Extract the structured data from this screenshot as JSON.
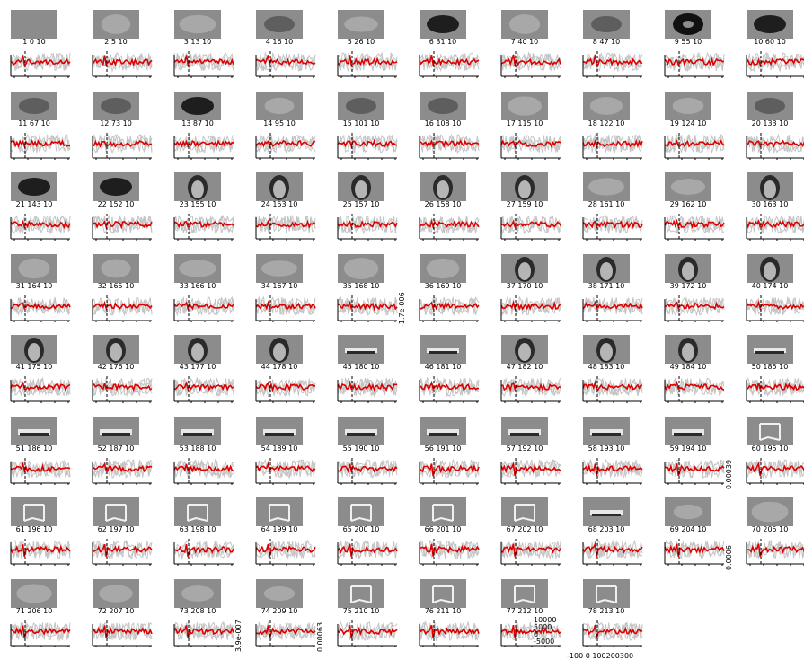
{
  "chart_data": {
    "type": "line",
    "title": "",
    "xlabel": "",
    "ylabel": "",
    "colors": {
      "mean": "#dd0000",
      "trials": "#c4c4c4",
      "axis": "#000000",
      "thumb_bg": "#8c8c8c"
    },
    "panels": [
      {
        "label": "1 0 10",
        "thumb": "blank"
      },
      {
        "label": "2 5 10",
        "thumb": "blob-light"
      },
      {
        "label": "3 13 10",
        "thumb": "blob-light"
      },
      {
        "label": "4 16 10",
        "thumb": "blob-mid"
      },
      {
        "label": "5 26 10",
        "thumb": "blob-light"
      },
      {
        "label": "6 31 10",
        "thumb": "blob-dark"
      },
      {
        "label": "7 40 10",
        "thumb": "blob-light"
      },
      {
        "label": "8 47 10",
        "thumb": "blob-mid"
      },
      {
        "label": "9 55 10",
        "thumb": "ring"
      },
      {
        "label": "10 60 10",
        "thumb": "blob-dark"
      },
      {
        "label": "11 67 10",
        "thumb": "blob-mid"
      },
      {
        "label": "12 73 10",
        "thumb": "blob-mid"
      },
      {
        "label": "13 87 10",
        "thumb": "blob-dark"
      },
      {
        "label": "14 95 10",
        "thumb": "blob-light"
      },
      {
        "label": "15 101 10",
        "thumb": "blob-mid"
      },
      {
        "label": "16 108 10",
        "thumb": "blob-mid"
      },
      {
        "label": "17 115 10",
        "thumb": "blob-light"
      },
      {
        "label": "18 122 10",
        "thumb": "blob-light"
      },
      {
        "label": "19 124 10",
        "thumb": "blob-light"
      },
      {
        "label": "20 133 10",
        "thumb": "blob-mid"
      },
      {
        "label": "21 143 10",
        "thumb": "blob-dark"
      },
      {
        "label": "22 152 10",
        "thumb": "blob-dark"
      },
      {
        "label": "23 155 10",
        "thumb": "face"
      },
      {
        "label": "24 153 10",
        "thumb": "face"
      },
      {
        "label": "25 157 10",
        "thumb": "face"
      },
      {
        "label": "26 158 10",
        "thumb": "face"
      },
      {
        "label": "27 159 10",
        "thumb": "face"
      },
      {
        "label": "28 161 10",
        "thumb": "blob-light"
      },
      {
        "label": "29 162 10",
        "thumb": "blob-light"
      },
      {
        "label": "30 163 10",
        "thumb": "face"
      },
      {
        "label": "31 164 10",
        "thumb": "blob-light"
      },
      {
        "label": "32 165 10",
        "thumb": "blob-light"
      },
      {
        "label": "33 166 10",
        "thumb": "blob-light"
      },
      {
        "label": "34 167 10",
        "thumb": "blob-light"
      },
      {
        "label": "35 168 10",
        "thumb": "blob-light"
      },
      {
        "label": "36 169 10",
        "thumb": "blob-light"
      },
      {
        "label": "37 170 10",
        "thumb": "face"
      },
      {
        "label": "38 171 10",
        "thumb": "face"
      },
      {
        "label": "39 172 10",
        "thumb": "face"
      },
      {
        "label": "40 174 10",
        "thumb": "face"
      },
      {
        "label": "41 175 10",
        "thumb": "face"
      },
      {
        "label": "42 176 10",
        "thumb": "face"
      },
      {
        "label": "43 177 10",
        "thumb": "face"
      },
      {
        "label": "44 178 10",
        "thumb": "face"
      },
      {
        "label": "45 180 10",
        "thumb": "bar"
      },
      {
        "label": "46 181 10",
        "thumb": "bar"
      },
      {
        "label": "47 182 10",
        "thumb": "face"
      },
      {
        "label": "48 183 10",
        "thumb": "face"
      },
      {
        "label": "49 184 10",
        "thumb": "face"
      },
      {
        "label": "50 185 10",
        "thumb": "bar"
      },
      {
        "label": "51 186 10",
        "thumb": "bar"
      },
      {
        "label": "52 187 10",
        "thumb": "bar"
      },
      {
        "label": "53 188 10",
        "thumb": "bar"
      },
      {
        "label": "54 189 10",
        "thumb": "bar"
      },
      {
        "label": "55 190 10",
        "thumb": "bar"
      },
      {
        "label": "56 191 10",
        "thumb": "bar"
      },
      {
        "label": "57 192 10",
        "thumb": "bar"
      },
      {
        "label": "58 193 10",
        "thumb": "bar"
      },
      {
        "label": "59 194 10",
        "thumb": "bar"
      },
      {
        "label": "60 195 10",
        "thumb": "frame"
      },
      {
        "label": "61 196 10",
        "thumb": "frame"
      },
      {
        "label": "62 197 10",
        "thumb": "frame"
      },
      {
        "label": "63 198 10",
        "thumb": "frame"
      },
      {
        "label": "64 199 10",
        "thumb": "frame"
      },
      {
        "label": "65 200 10",
        "thumb": "frame"
      },
      {
        "label": "66 201 10",
        "thumb": "frame"
      },
      {
        "label": "67 202 10",
        "thumb": "frame"
      },
      {
        "label": "68 203 10",
        "thumb": "bar"
      },
      {
        "label": "69 204 10",
        "thumb": "blob-light"
      },
      {
        "label": "70 205 10",
        "thumb": "blob-light"
      },
      {
        "label": "71 206 10",
        "thumb": "blob-light"
      },
      {
        "label": "72 207 10",
        "thumb": "blob-light"
      },
      {
        "label": "73 208 10",
        "thumb": "blob-light"
      },
      {
        "label": "74 209 10",
        "thumb": "blob-light"
      },
      {
        "label": "75 210 10",
        "thumb": "frame"
      },
      {
        "label": "76 211 10",
        "thumb": "frame"
      },
      {
        "label": "77 212 10",
        "thumb": "frame"
      },
      {
        "label": "78 213 10",
        "thumb": "frame"
      }
    ],
    "side_labels": [
      {
        "after_panel": 34,
        "text": "-1.7e-006"
      },
      {
        "after_panel": 58,
        "text": "0.00039"
      },
      {
        "after_panel": 68,
        "text": "0.0006"
      },
      {
        "after_panel": 72,
        "text": "3.9e-007"
      },
      {
        "after_panel": 73,
        "text": "0.00063"
      }
    ],
    "y_ticks_last": [
      "10000",
      "5000",
      "0",
      "-5000"
    ],
    "x_ticks_last": "-100 0 100200300"
  }
}
